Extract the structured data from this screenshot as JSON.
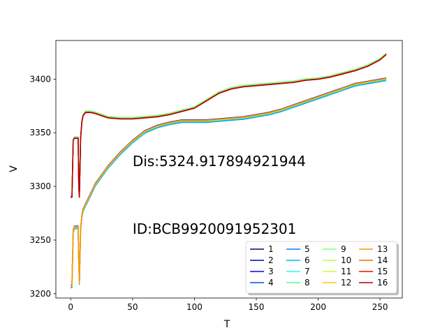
{
  "chart_data": {
    "type": "line",
    "xlabel": "T",
    "ylabel": "V",
    "xlim": [
      -12,
      268
    ],
    "ylim": [
      3196,
      3436
    ],
    "xticks": [
      0,
      50,
      100,
      150,
      200,
      250
    ],
    "yticks": [
      3200,
      3250,
      3300,
      3350,
      3400
    ],
    "annotations": [
      {
        "text": "Dis:5324.917894921944",
        "x": 50,
        "y": 3319
      },
      {
        "text": "ID:BCB9920091952301",
        "x": 50,
        "y": 3256
      }
    ],
    "legend": {
      "placement": "lower-right",
      "columns": 4
    },
    "upper_curve": {
      "x": [
        0,
        1,
        2,
        3,
        4,
        5,
        6,
        6.5,
        7,
        8,
        9,
        10,
        12,
        14,
        16,
        20,
        25,
        30,
        40,
        50,
        60,
        70,
        80,
        90,
        100,
        110,
        120,
        130,
        140,
        150,
        160,
        170,
        180,
        190,
        200,
        210,
        220,
        230,
        240,
        250,
        255
      ],
      "y": [
        3290,
        3290,
        3343,
        3345,
        3345,
        3345,
        3345,
        3300,
        3290,
        3345,
        3360,
        3366,
        3369,
        3369,
        3369,
        3368,
        3366,
        3364,
        3363,
        3363,
        3364,
        3365,
        3367,
        3370,
        3373,
        3380,
        3387,
        3391,
        3393,
        3394,
        3395,
        3396,
        3397,
        3399,
        3400,
        3402,
        3405,
        3408,
        3412,
        3418,
        3423
      ]
    },
    "lower_curve": {
      "x": [
        0,
        1,
        2,
        3,
        4,
        5,
        6,
        6.5,
        7,
        8,
        9,
        10,
        12,
        15,
        20,
        30,
        40,
        50,
        60,
        70,
        80,
        90,
        100,
        110,
        120,
        130,
        140,
        150,
        160,
        170,
        180,
        190,
        200,
        210,
        220,
        230,
        240,
        250,
        255
      ],
      "y": [
        3207,
        3207,
        3258,
        3262,
        3262,
        3262,
        3262,
        3230,
        3210,
        3260,
        3272,
        3278,
        3283,
        3290,
        3302,
        3318,
        3331,
        3342,
        3351,
        3356,
        3359,
        3361,
        3361,
        3361,
        3362,
        3363,
        3364,
        3366,
        3368,
        3371,
        3375,
        3379,
        3383,
        3387,
        3391,
        3395,
        3397,
        3399,
        3400
      ]
    },
    "series": [
      {
        "name": "1",
        "color": "#000080",
        "group": "upper",
        "offset": 0.4
      },
      {
        "name": "2",
        "color": "#0000b2",
        "group": "lower",
        "offset": 1.0
      },
      {
        "name": "3",
        "color": "#0000f1",
        "group": "lower",
        "offset": 0.8
      },
      {
        "name": "4",
        "color": "#004cff",
        "group": "lower",
        "offset": 0.2
      },
      {
        "name": "5",
        "color": "#0080ff",
        "group": "lower",
        "offset": -0.6
      },
      {
        "name": "6",
        "color": "#00b4ff",
        "group": "lower",
        "offset": -1.4
      },
      {
        "name": "7",
        "color": "#29ffce",
        "group": "upper",
        "offset": 0.8
      },
      {
        "name": "8",
        "color": "#4dff9a",
        "group": "upper",
        "offset": 1.2
      },
      {
        "name": "9",
        "color": "#7dff7a",
        "group": "upper",
        "offset": 1.0
      },
      {
        "name": "10",
        "color": "#b0ff46",
        "group": "lower",
        "offset": -0.2
      },
      {
        "name": "11",
        "color": "#ceff29",
        "group": "lower",
        "offset": 0.3
      },
      {
        "name": "12",
        "color": "#ffc400",
        "group": "lower",
        "offset": 0.6
      },
      {
        "name": "13",
        "color": "#ff9400",
        "group": "lower",
        "offset": 0.4
      },
      {
        "name": "14",
        "color": "#ff6000",
        "group": "upper",
        "offset": 0.1
      },
      {
        "name": "15",
        "color": "#f10800",
        "group": "upper",
        "offset": -0.2
      },
      {
        "name": "16",
        "color": "#b20000",
        "group": "upper",
        "offset": 0.0
      }
    ]
  }
}
